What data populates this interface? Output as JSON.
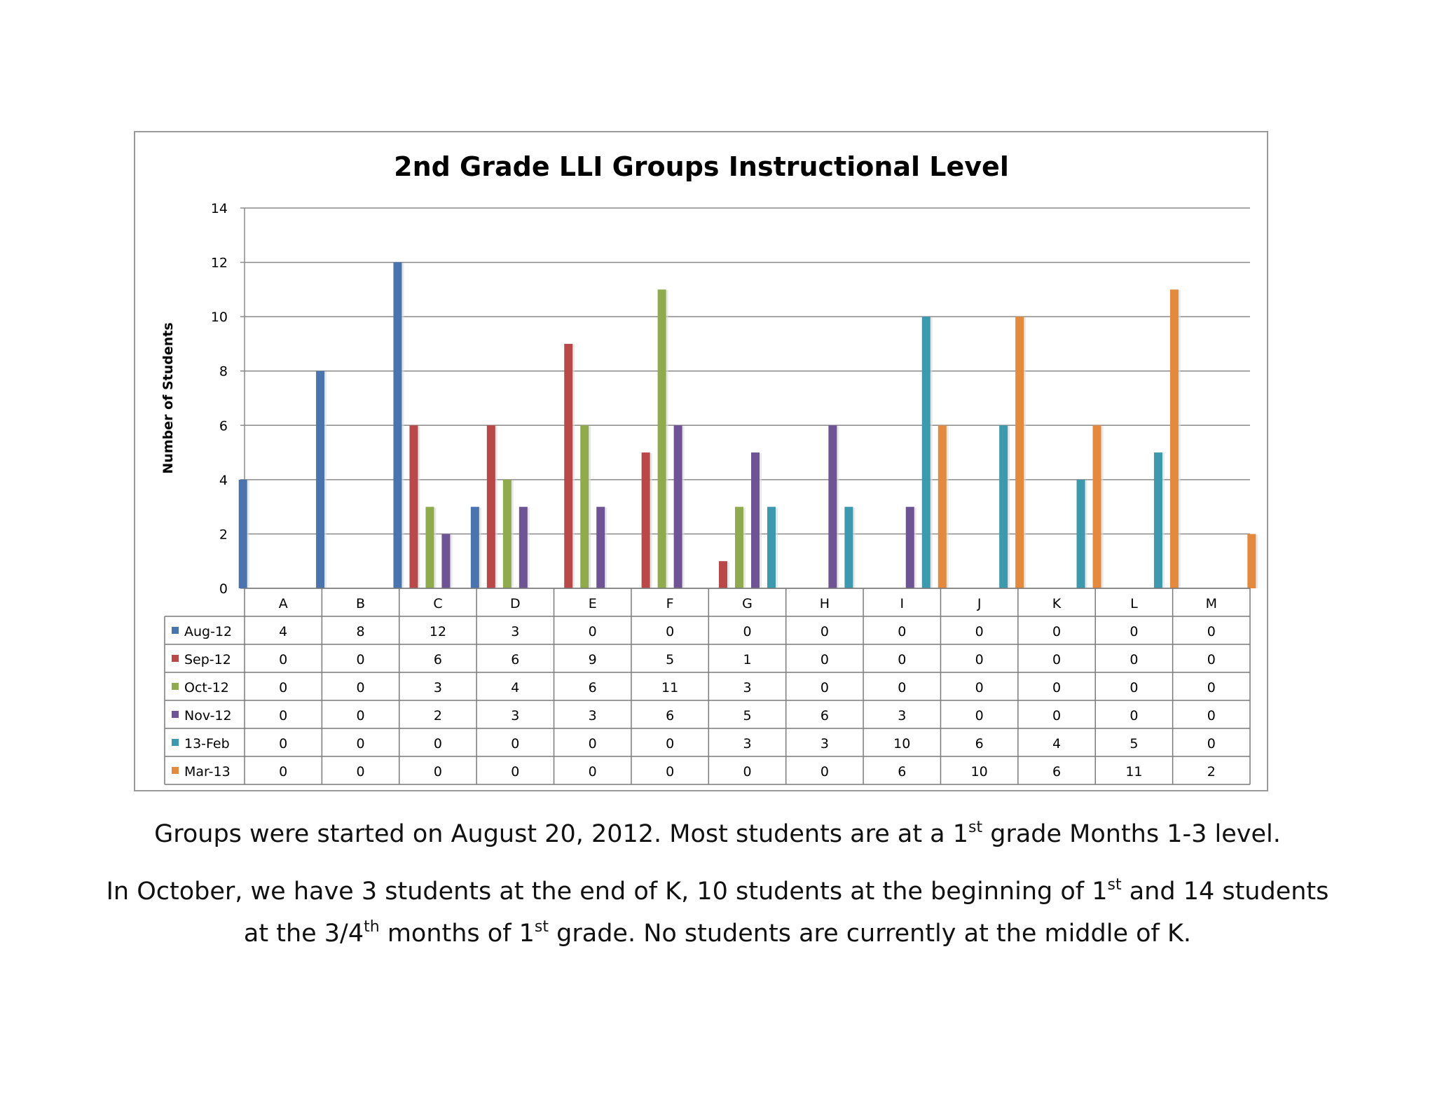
{
  "chart_data": {
    "type": "bar",
    "title": "2nd Grade LLI Groups Instructional Level",
    "ylabel": "Number of Students",
    "xlabel": "",
    "ylim": [
      0,
      14
    ],
    "yticks": [
      0,
      2,
      4,
      6,
      8,
      10,
      12,
      14
    ],
    "grid": true,
    "legend": "data-table",
    "categories": [
      "A",
      "B",
      "C",
      "D",
      "E",
      "F",
      "G",
      "H",
      "I",
      "J",
      "K",
      "L",
      "M"
    ],
    "series": [
      {
        "name": "Aug-12",
        "color": "#4a74ae",
        "values": [
          4,
          8,
          12,
          3,
          0,
          0,
          0,
          0,
          0,
          0,
          0,
          0,
          0
        ]
      },
      {
        "name": "Sep-12",
        "color": "#b94848",
        "values": [
          0,
          0,
          6,
          6,
          9,
          5,
          1,
          0,
          0,
          0,
          0,
          0,
          0
        ]
      },
      {
        "name": "Oct-12",
        "color": "#8fab4e",
        "values": [
          0,
          0,
          3,
          4,
          6,
          11,
          3,
          0,
          0,
          0,
          0,
          0,
          0
        ]
      },
      {
        "name": "Nov-12",
        "color": "#6e5494",
        "values": [
          0,
          0,
          2,
          3,
          3,
          6,
          5,
          6,
          3,
          0,
          0,
          0,
          0
        ]
      },
      {
        "name": "13-Feb",
        "color": "#3c99ae",
        "values": [
          0,
          0,
          0,
          0,
          0,
          0,
          3,
          3,
          10,
          6,
          4,
          5,
          0
        ]
      },
      {
        "name": "Mar-13",
        "color": "#e38a3f",
        "values": [
          0,
          0,
          0,
          0,
          0,
          0,
          0,
          0,
          6,
          10,
          6,
          11,
          2
        ]
      }
    ]
  },
  "captions": {
    "line1": {
      "a": "Groups were started on August 20, 2012. Most students are at a 1",
      "a_sup": "st",
      "b": " grade Months 1-3 level."
    },
    "line2": {
      "a": "In October, we have 3 students at the end of K, 10 students at the beginning of 1",
      "a_sup": "st",
      "b": " and 14 students"
    },
    "line3": {
      "a": "at the 3/4",
      "a_sup": "th",
      "b": " months of 1",
      "b_sup": "st",
      "c": " grade. No students are currently at the middle of K."
    }
  }
}
